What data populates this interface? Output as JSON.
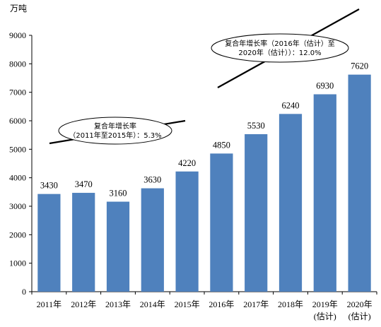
{
  "chart_data": {
    "type": "bar",
    "y_unit": "万吨",
    "categories": [
      [
        "2011年"
      ],
      [
        "2012年"
      ],
      [
        "2013年"
      ],
      [
        "2014年"
      ],
      [
        "2015年"
      ],
      [
        "2016年"
      ],
      [
        "2017年"
      ],
      [
        "2018年"
      ],
      [
        "2019年",
        "(估计)"
      ],
      [
        "2020年",
        "(估计)"
      ]
    ],
    "values": [
      3430,
      3470,
      3160,
      3630,
      4220,
      4850,
      5530,
      6240,
      6930,
      7620
    ],
    "ylim": [
      0,
      9000
    ],
    "yticks": [
      0,
      1000,
      2000,
      3000,
      4000,
      5000,
      6000,
      7000,
      8000,
      9000
    ],
    "grid": false,
    "bar_color": "#4F81BD",
    "annotations": [
      {
        "lines": [
          "复合年增长率",
          "（2011年至2015年）：5.3%"
        ]
      },
      {
        "lines": [
          "复合年增长率（2016年（估计）至",
          "2020年（估计））：12.0%"
        ]
      }
    ]
  }
}
